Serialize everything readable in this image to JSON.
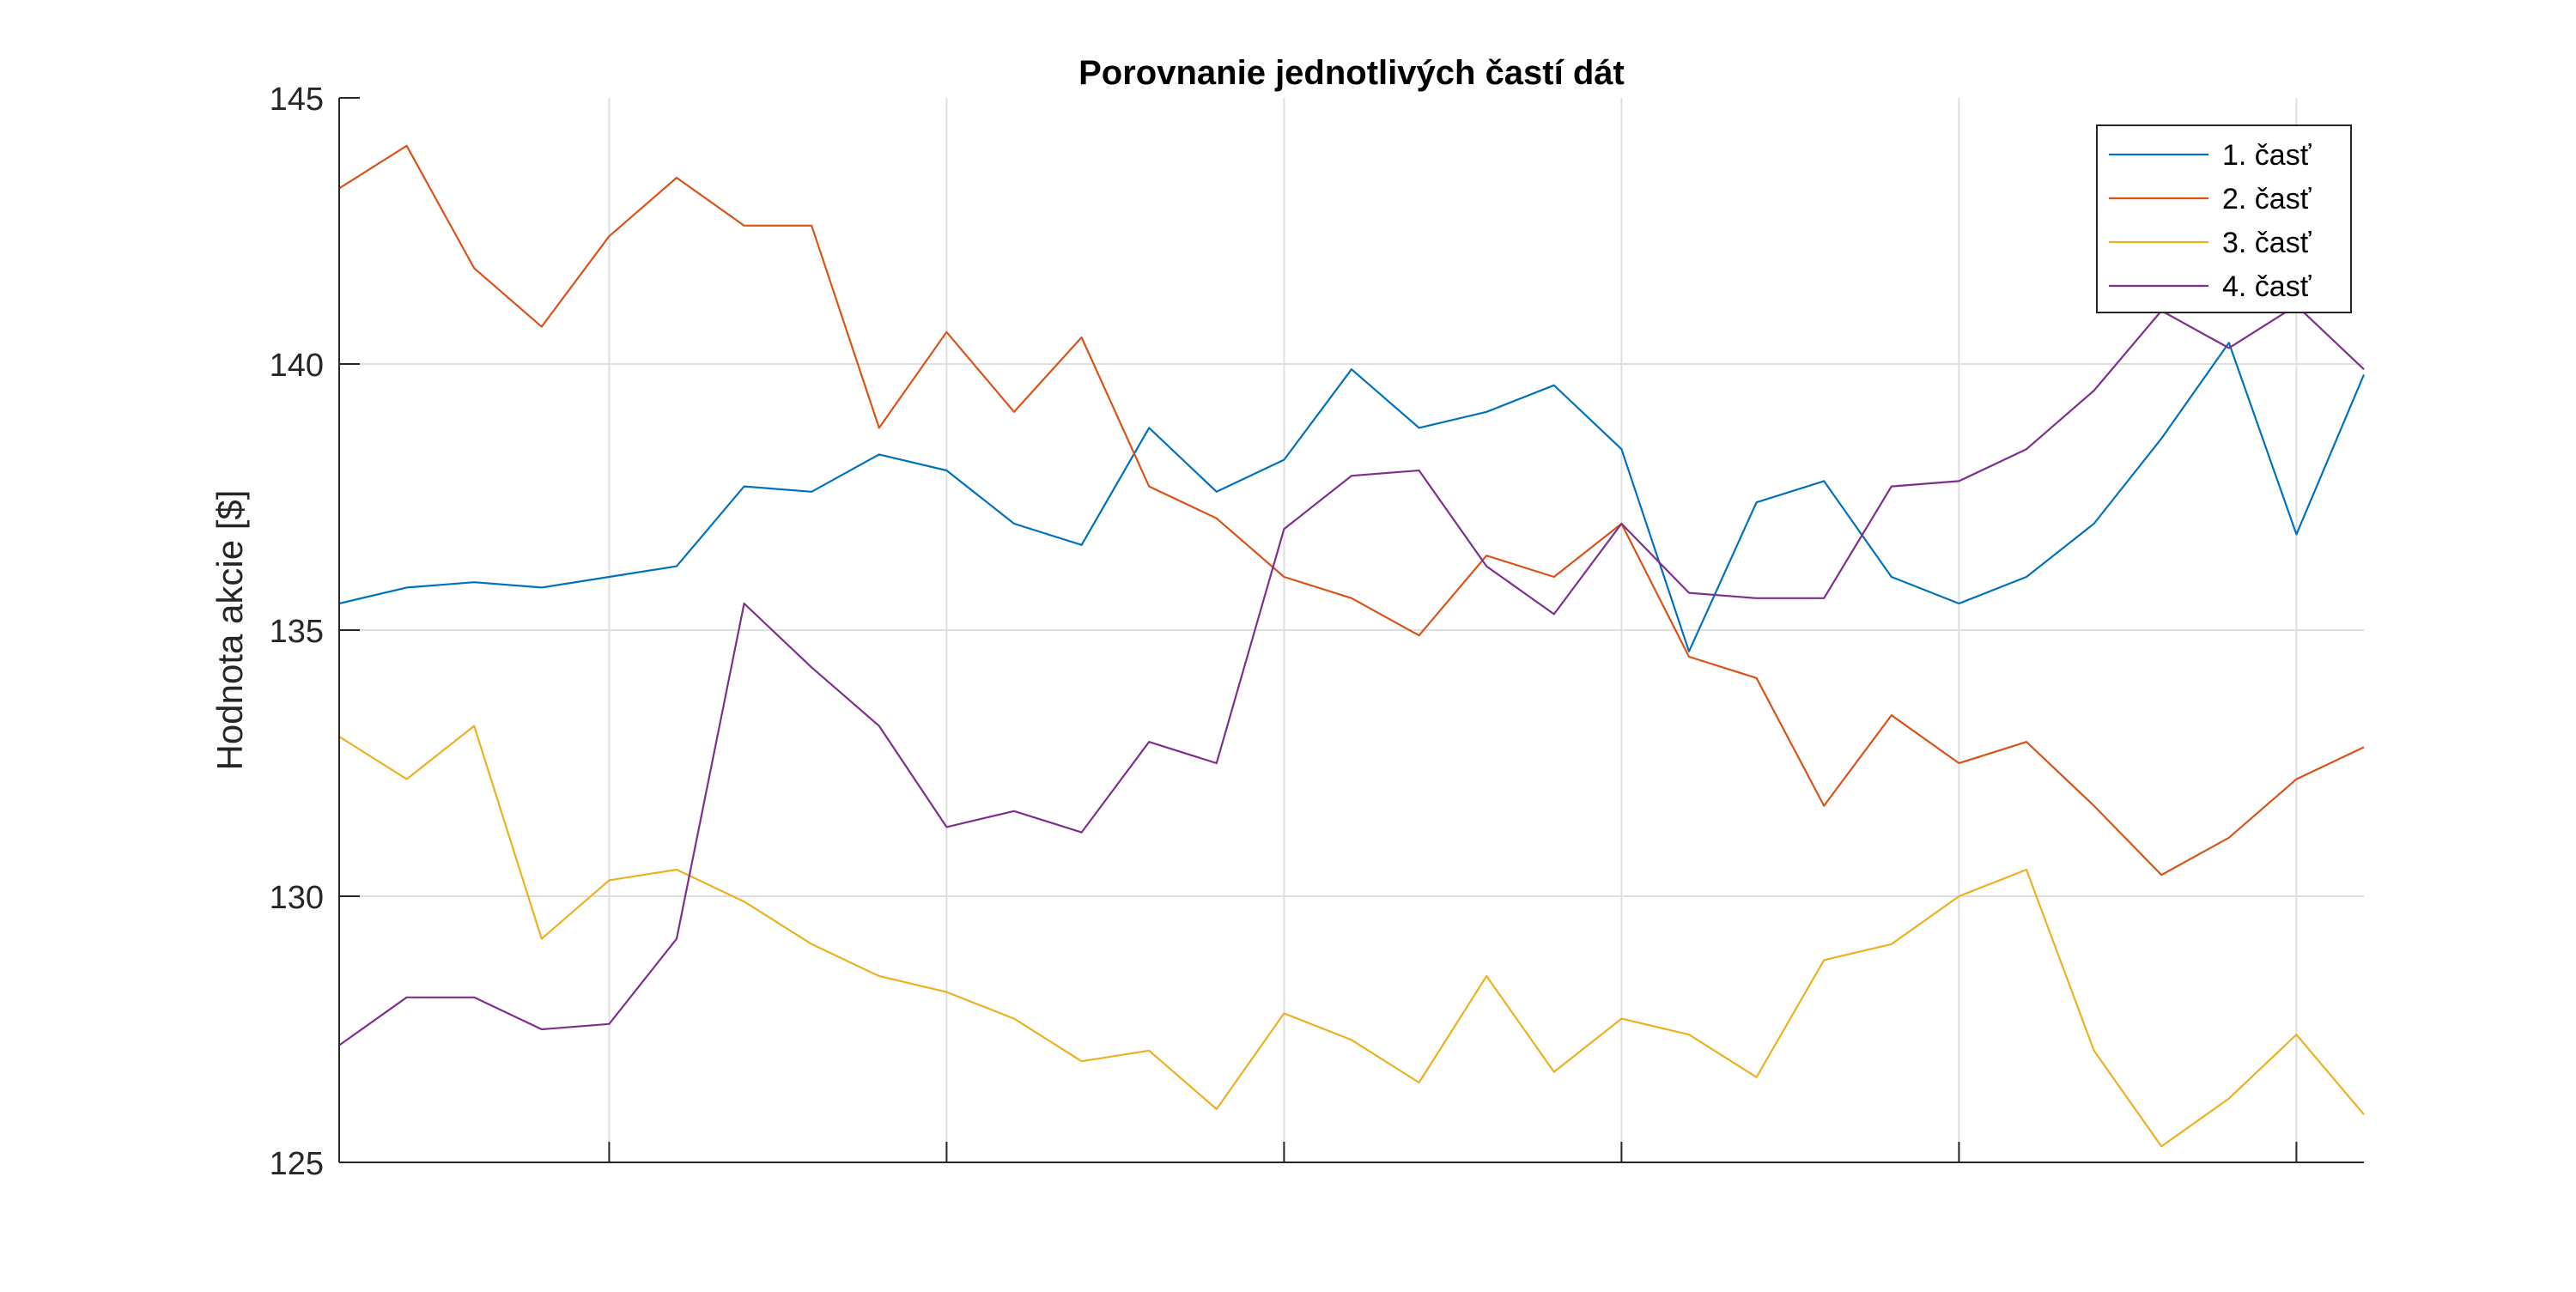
{
  "chart_data": {
    "type": "line",
    "title": "Porovnanie jednotlivých častí dát",
    "xlabel": "",
    "ylabel": "Hodnota akcie [$]",
    "x": [
      1,
      2,
      3,
      4,
      5,
      6,
      7,
      8,
      9,
      10,
      11,
      12,
      13,
      14,
      15,
      16,
      17,
      18,
      19,
      20,
      21,
      22,
      23,
      24,
      25,
      26,
      27,
      28,
      29,
      30,
      31
    ],
    "xlim": [
      1,
      31
    ],
    "xticks": [
      5,
      10,
      15,
      20,
      25,
      30
    ],
    "ylim": [
      125,
      145
    ],
    "yticks": [
      125,
      130,
      135,
      140,
      145
    ],
    "grid": true,
    "legend_location": "top-right",
    "series": [
      {
        "name": "1. časť",
        "color": "#0072BD",
        "values": [
          135.5,
          135.8,
          135.9,
          135.8,
          136.0,
          136.2,
          137.7,
          137.6,
          138.3,
          138.0,
          137.0,
          136.6,
          138.8,
          137.6,
          138.2,
          139.9,
          138.8,
          139.1,
          139.6,
          138.4,
          134.6,
          137.4,
          137.8,
          136.0,
          135.5,
          136.0,
          137.0,
          138.6,
          140.4,
          136.8,
          139.8
        ]
      },
      {
        "name": "2. časť",
        "color": "#D95319",
        "values": [
          143.3,
          144.1,
          141.8,
          140.7,
          142.4,
          143.5,
          142.6,
          142.6,
          138.8,
          140.6,
          139.1,
          140.5,
          137.7,
          137.1,
          136.0,
          135.6,
          134.9,
          136.4,
          136.0,
          137.0,
          134.5,
          134.1,
          131.7,
          133.4,
          132.5,
          132.9,
          131.7,
          130.4,
          131.1,
          132.2,
          132.8
        ]
      },
      {
        "name": "3. časť",
        "color": "#EDB120",
        "values": [
          133.0,
          132.2,
          133.2,
          129.2,
          130.3,
          130.5,
          129.9,
          129.1,
          128.5,
          128.2,
          127.7,
          126.9,
          127.1,
          126.0,
          127.8,
          127.3,
          126.5,
          128.5,
          126.7,
          127.7,
          127.4,
          126.6,
          128.8,
          129.1,
          130.0,
          130.5,
          127.1,
          125.3,
          126.2,
          127.4,
          125.9
        ]
      },
      {
        "name": "4. časť",
        "color": "#7E2F8E",
        "values": [
          127.2,
          128.1,
          128.1,
          127.5,
          127.6,
          129.2,
          135.5,
          134.3,
          133.2,
          131.3,
          131.6,
          131.2,
          132.9,
          132.5,
          136.9,
          137.9,
          138.0,
          136.2,
          135.3,
          137.0,
          135.7,
          135.6,
          135.6,
          137.7,
          137.8,
          138.4,
          139.5,
          141.0,
          140.3,
          141.1,
          139.9
        ]
      }
    ]
  }
}
